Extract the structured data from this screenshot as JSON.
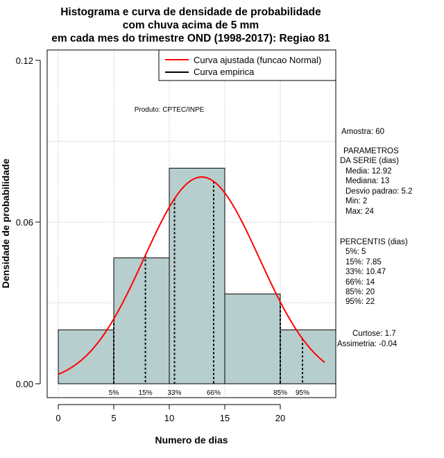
{
  "chart_data": {
    "type": "bar",
    "title_lines": [
      "Histograma e curva de densidade de probabilidade",
      "com chuva acima de 5 mm",
      "em cada mes do trimestre OND (1998-2017): Regiao 81"
    ],
    "xlabel": "Numero de dias",
    "ylabel": "Densidade de probabilidade",
    "xlim": [
      -1.0,
      25.0
    ],
    "ylim": [
      0.0,
      0.12
    ],
    "xticks": [
      0,
      5,
      10,
      15,
      20
    ],
    "xtick_labels": [
      "0",
      "5",
      "10",
      "15",
      "20"
    ],
    "yticks": [
      0.0,
      0.06,
      0.12
    ],
    "ytick_labels": [
      "0.00",
      "0.06",
      "0.12"
    ],
    "grid_x": [
      0,
      5,
      10,
      15,
      20
    ],
    "grid_y": [
      0.03,
      0.06,
      0.09
    ],
    "bins": [
      {
        "start": 0,
        "end": 5,
        "density": 0.02
      },
      {
        "start": 5,
        "end": 10,
        "density": 0.0467
      },
      {
        "start": 10,
        "end": 15,
        "density": 0.08
      },
      {
        "start": 15,
        "end": 20,
        "density": 0.0333
      },
      {
        "start": 20,
        "end": 25,
        "density": 0.02
      }
    ],
    "bar_color": "#b7cece",
    "curve": {
      "name": "Curva ajustada (funcao Normal)",
      "mean": 12.92,
      "sd": 5.2,
      "x_range": [
        0,
        24
      ],
      "color": "#ff0000"
    },
    "empirical_name": "Curva empirica",
    "percentiles": [
      {
        "label": "5%",
        "x": 5
      },
      {
        "label": "15%",
        "x": 7.85
      },
      {
        "label": "33%",
        "x": 10.47
      },
      {
        "label": "66%",
        "x": 14
      },
      {
        "label": "85%",
        "x": 20
      },
      {
        "label": "95%",
        "x": 22
      }
    ],
    "credit": "Produto: CPTEC/INPE",
    "legend_position": "top-right",
    "side_info": {
      "amostra": "Amostra: 60",
      "params_title_1": "PARAMETROS",
      "params_title_2": "DA SERIE (dias)",
      "params": [
        "Media: 12.92",
        "Mediana: 13",
        "Desvio padrao: 5.2",
        "Min: 2",
        "Max: 24"
      ],
      "percentis_title": "PERCENTIS (dias)",
      "percentis": [
        "5%: 5",
        "15%: 7.85",
        "33%: 10.47",
        "66%: 14",
        "85%: 20",
        "95%: 22"
      ],
      "curtose": "Curtose: 1.7",
      "assimetria": "Assimetria: -0.04"
    }
  }
}
